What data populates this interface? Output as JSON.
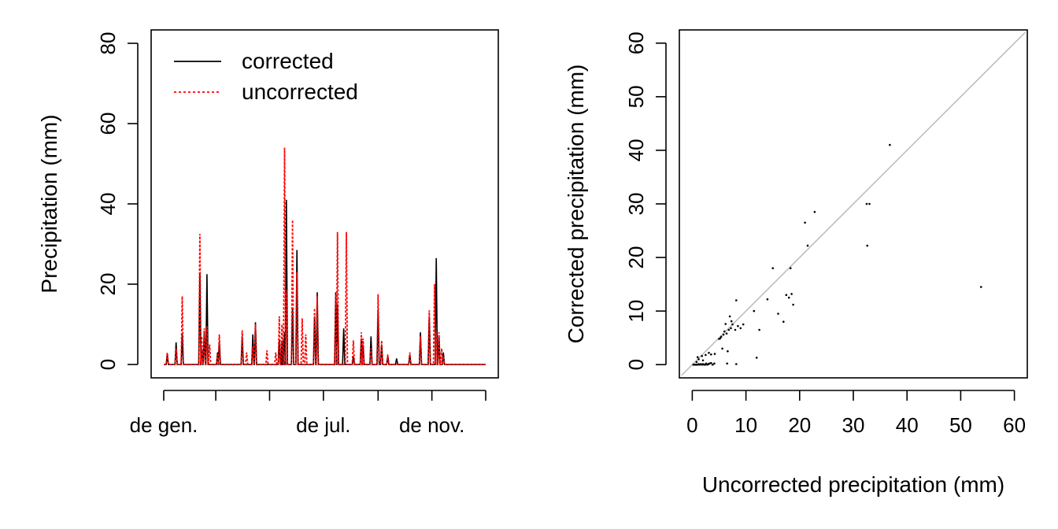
{
  "colors": {
    "corrected": "#000000",
    "uncorrected": "#ff0000",
    "identity_line": "#bebebe"
  },
  "chart_data": [
    {
      "type": "line",
      "title": "",
      "xlabel": "",
      "ylabel": "Precipitation (mm)",
      "ylim": [
        0,
        80
      ],
      "yticks": [
        "0",
        "20",
        "40",
        "60",
        "80"
      ],
      "x_ticks": [
        1,
        60,
        121,
        182,
        244,
        305,
        366
      ],
      "x_labels": [
        {
          "day": 1,
          "label": "de gen."
        },
        {
          "day": 182,
          "label": "de jul."
        },
        {
          "day": 305,
          "label": "de nov."
        }
      ],
      "xlim": [
        1,
        366
      ],
      "legend": {
        "position": "top-left",
        "entries": [
          "corrected",
          "uncorrected"
        ]
      },
      "series": [
        {
          "name": "corrected",
          "style": "solid",
          "points": [
            [
              5,
              2.5
            ],
            [
              15,
              5.5
            ],
            [
              22,
              7.5
            ],
            [
              42,
              22.5
            ],
            [
              44,
              4
            ],
            [
              47,
              8
            ],
            [
              50,
              22.5
            ],
            [
              62,
              3
            ],
            [
              64,
              5.5
            ],
            [
              90,
              7
            ],
            [
              102,
              7.5
            ],
            [
              105,
              10.5
            ],
            [
              132,
              6
            ],
            [
              135,
              5.5
            ],
            [
              136,
              6
            ],
            [
              138,
              8
            ],
            [
              140,
              41
            ],
            [
              147,
              14
            ],
            [
              152,
              28.5
            ],
            [
              172,
              12
            ],
            [
              175,
              18
            ],
            [
              196,
              18
            ],
            [
              198,
              15
            ],
            [
              205,
              9
            ],
            [
              216,
              2
            ],
            [
              225,
              6.5
            ],
            [
              227,
              5
            ],
            [
              236,
              7
            ],
            [
              244,
              13.5
            ],
            [
              248,
              5
            ],
            [
              255,
              2
            ],
            [
              265,
              1.5
            ],
            [
              280,
              2.5
            ],
            [
              292,
              8
            ],
            [
              302,
              12
            ],
            [
              310,
              26.5
            ],
            [
              313,
              7
            ],
            [
              318,
              3
            ]
          ]
        },
        {
          "name": "uncorrected",
          "style": "dotted",
          "points": [
            [
              5,
              3
            ],
            [
              15,
              4
            ],
            [
              22,
              17
            ],
            [
              42,
              32.5
            ],
            [
              44,
              7
            ],
            [
              47,
              9
            ],
            [
              50,
              9.5
            ],
            [
              53,
              5
            ],
            [
              62,
              2.5
            ],
            [
              64,
              7.5
            ],
            [
              90,
              8.5
            ],
            [
              95,
              3
            ],
            [
              102,
              4.5
            ],
            [
              105,
              10
            ],
            [
              118,
              3.5
            ],
            [
              128,
              3
            ],
            [
              132,
              12
            ],
            [
              135,
              10
            ],
            [
              138,
              54
            ],
            [
              140,
              18.5
            ],
            [
              147,
              36
            ],
            [
              152,
              23
            ],
            [
              158,
              11.5
            ],
            [
              162,
              7.5
            ],
            [
              172,
              14
            ],
            [
              175,
              17
            ],
            [
              196,
              17.5
            ],
            [
              198,
              33
            ],
            [
              208,
              33
            ],
            [
              216,
              6
            ],
            [
              225,
              8
            ],
            [
              227,
              6.5
            ],
            [
              236,
              4
            ],
            [
              244,
              17.5
            ],
            [
              248,
              6
            ],
            [
              255,
              2.5
            ],
            [
              280,
              3
            ],
            [
              292,
              7
            ],
            [
              302,
              13.5
            ],
            [
              308,
              20
            ],
            [
              310,
              8
            ],
            [
              313,
              8
            ],
            [
              316,
              4
            ],
            [
              318,
              2
            ]
          ]
        }
      ]
    },
    {
      "type": "scatter",
      "title": "",
      "xlabel": "Uncorrected precipitation (mm)",
      "ylabel": "Corrected precipitation (mm)",
      "xlim": [
        -2,
        62
      ],
      "ylim": [
        -2,
        62
      ],
      "xticks": [
        "0",
        "10",
        "20",
        "30",
        "40",
        "50",
        "60"
      ],
      "yticks": [
        "0",
        "10",
        "20",
        "30",
        "40",
        "50",
        "60"
      ],
      "reference_line": "y = x",
      "points": [
        [
          0.2,
          0
        ],
        [
          0.4,
          0
        ],
        [
          0.6,
          0
        ],
        [
          0.8,
          0
        ],
        [
          1,
          0
        ],
        [
          1.2,
          0.1
        ],
        [
          1.4,
          0
        ],
        [
          1.6,
          0.1
        ],
        [
          1.8,
          0
        ],
        [
          2,
          0.1
        ],
        [
          2.2,
          0
        ],
        [
          2.4,
          0
        ],
        [
          2.6,
          0.2
        ],
        [
          2.8,
          0
        ],
        [
          3,
          0.1
        ],
        [
          3.2,
          0.2
        ],
        [
          3.5,
          0.3
        ],
        [
          3.8,
          0
        ],
        [
          4.1,
          0.2
        ],
        [
          0.8,
          0.5
        ],
        [
          1.2,
          1
        ],
        [
          1.8,
          1.6
        ],
        [
          2.5,
          1.8
        ],
        [
          3.1,
          2.2
        ],
        [
          3.5,
          1.9
        ],
        [
          4.2,
          2
        ],
        [
          1,
          1.4
        ],
        [
          2,
          0.8
        ],
        [
          5,
          4.8
        ],
        [
          5.4,
          5.2
        ],
        [
          5.8,
          5.6
        ],
        [
          6,
          6.2
        ],
        [
          6.4,
          5.8
        ],
        [
          6.8,
          6.5
        ],
        [
          7.2,
          6.8
        ],
        [
          7.5,
          7.5
        ],
        [
          8,
          6.5
        ],
        [
          8.5,
          7.2
        ],
        [
          9,
          6.8
        ],
        [
          9.5,
          7.5
        ],
        [
          7,
          9
        ],
        [
          7.3,
          8.1
        ],
        [
          6.2,
          7.6
        ],
        [
          5.2,
          4.9
        ],
        [
          8.2,
          12
        ],
        [
          5.6,
          3
        ],
        [
          6.6,
          2.5
        ],
        [
          6.5,
          0.2
        ],
        [
          8.2,
          0.1
        ],
        [
          12,
          1.3
        ],
        [
          12.5,
          6.5
        ],
        [
          11.5,
          10
        ],
        [
          14,
          12.2
        ],
        [
          15,
          18
        ],
        [
          16,
          9.5
        ],
        [
          17,
          8
        ],
        [
          17.5,
          13
        ],
        [
          18,
          12.5
        ],
        [
          18.3,
          18
        ],
        [
          18.5,
          13.2
        ],
        [
          18.8,
          11.2
        ],
        [
          21,
          26.5
        ],
        [
          21.5,
          22.2
        ],
        [
          22.8,
          28.5
        ],
        [
          32.5,
          30
        ],
        [
          32.6,
          22.2
        ],
        [
          33,
          30
        ],
        [
          36.8,
          41
        ],
        [
          53.8,
          14.5
        ]
      ]
    }
  ]
}
